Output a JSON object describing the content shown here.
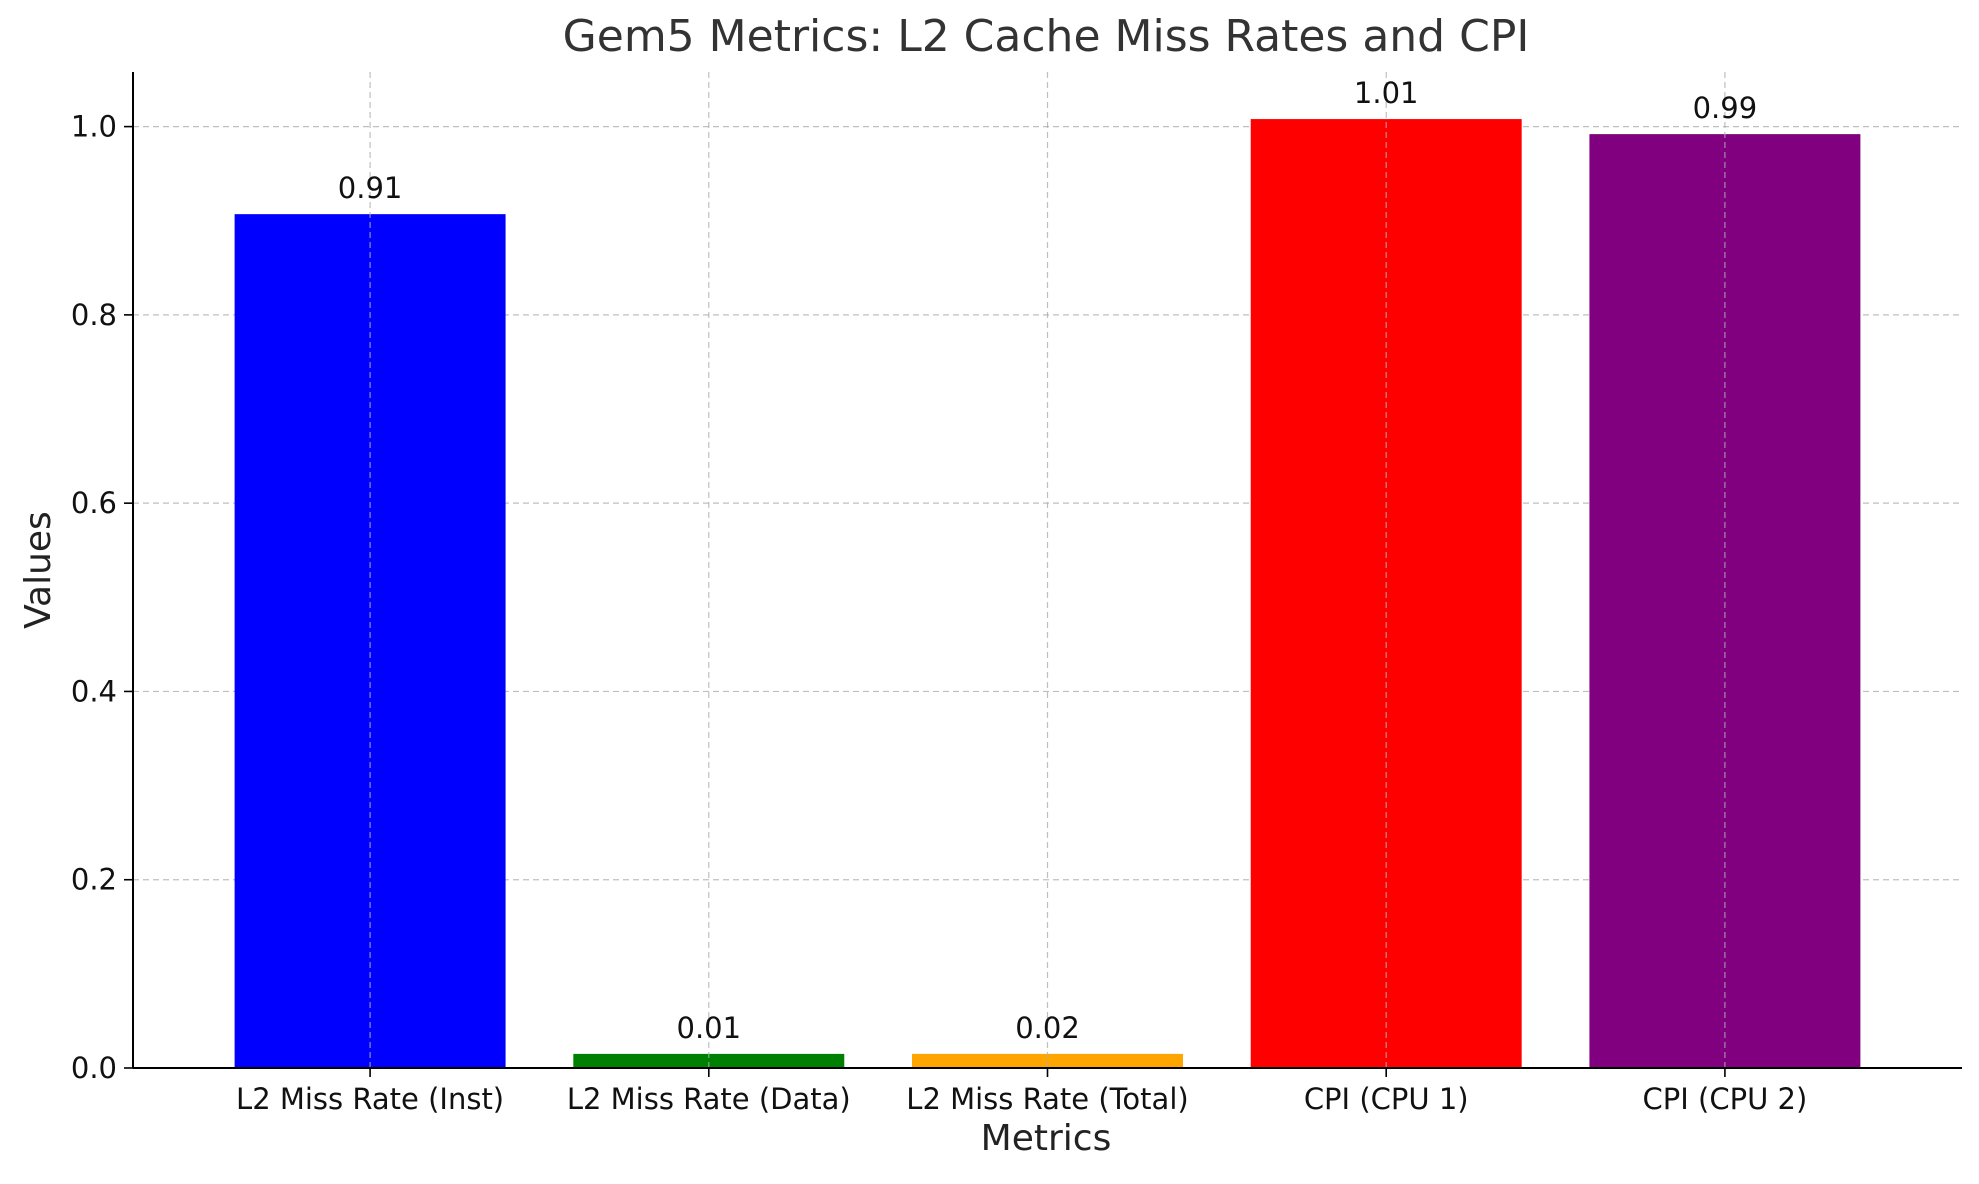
{
  "chart_data": {
    "type": "bar",
    "title": "Gem5 Metrics: L2 Cache Miss Rates and CPI",
    "xlabel": "Metrics",
    "ylabel": "Values",
    "categories": [
      "L2 Miss Rate (Inst)",
      "L2 Miss Rate (Data)",
      "L2 Miss Rate (Total)",
      "CPI (CPU 1)",
      "CPI (CPU 2)"
    ],
    "values": [
      0.907,
      0.015,
      0.015,
      1.008,
      0.992
    ],
    "value_labels": [
      "0.91",
      "0.01",
      "0.02",
      "1.01",
      "0.99"
    ],
    "colors": [
      "#0000ff",
      "#008000",
      "#ffa500",
      "#ff0000",
      "#800080"
    ],
    "ylim": [
      0,
      1.058
    ],
    "yticks": [
      0.0,
      0.2,
      0.4,
      0.6,
      0.8,
      1.0
    ],
    "ytick_labels": [
      "0.0",
      "0.2",
      "0.4",
      "0.6",
      "0.8",
      "1.0"
    ],
    "grid": true,
    "legend": false
  }
}
